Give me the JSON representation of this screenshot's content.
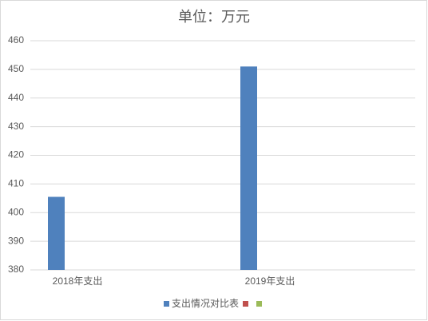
{
  "chart_data": {
    "type": "bar",
    "title": "单位：万元",
    "categories": [
      "2018年支出",
      "2019年支出"
    ],
    "series": [
      {
        "name": "支出情况对比表",
        "color": "#4f81bd",
        "values": [
          405.5,
          451
        ]
      },
      {
        "color": "#c0504d",
        "values": [
          null,
          null
        ]
      },
      {
        "color": "#9bbb59",
        "values": [
          null,
          null
        ]
      }
    ],
    "ylim": [
      380,
      460
    ],
    "yticks": [
      380,
      390,
      400,
      410,
      420,
      430,
      440,
      450,
      460
    ],
    "grid": true
  }
}
